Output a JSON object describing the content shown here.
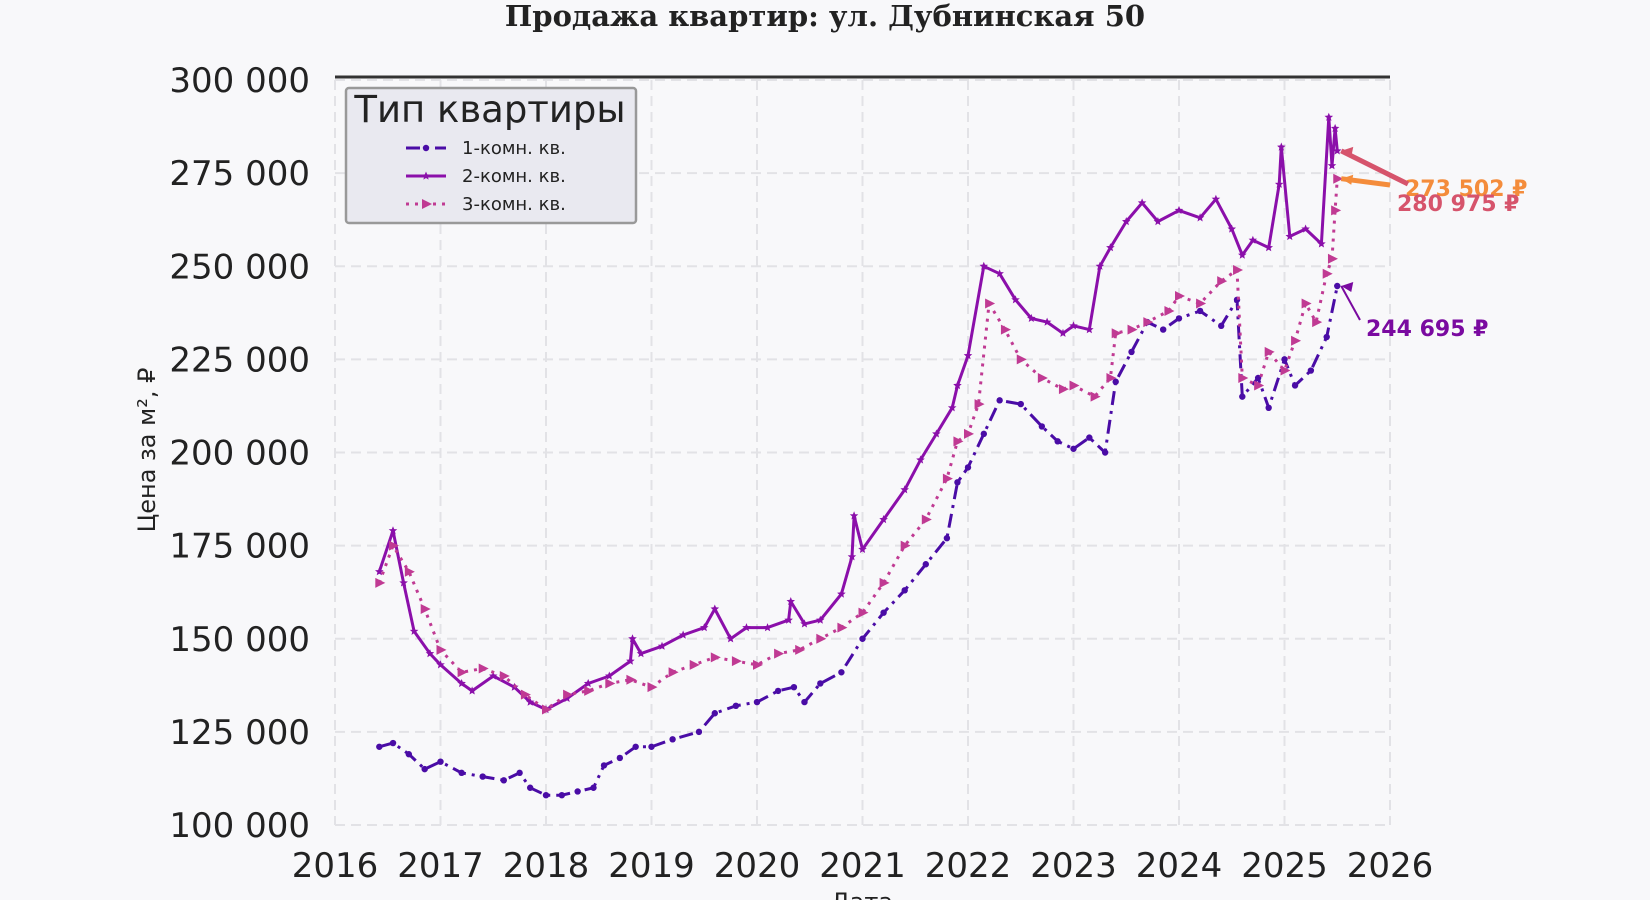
{
  "chart_data": {
    "type": "line",
    "title": "Продажа квартир: ул. Дубнинская 50",
    "xlabel": "Дата",
    "ylabel": "Цена за м², ₽",
    "xlim": [
      2016,
      2026
    ],
    "ylim": [
      100000,
      300000
    ],
    "x_ticks": [
      "2016",
      "2017",
      "2018",
      "2019",
      "2020",
      "2021",
      "2022",
      "2023",
      "2024",
      "2025",
      "2026"
    ],
    "y_ticks": [
      "100 000",
      "125 000",
      "150 000",
      "175 000",
      "200 000",
      "225 000",
      "250 000",
      "275 000",
      "300 000"
    ],
    "grid": true,
    "legend": {
      "title": "Тип квартиры",
      "placement": "top-left",
      "entries": [
        "1-комн. кв.",
        "2-комн. кв.",
        "3-комн. кв."
      ]
    },
    "series": [
      {
        "name": "1-комн. кв.",
        "color": "#4a0ca6",
        "style": "dashdot",
        "marker": "circle",
        "x": [
          2016.42,
          2016.55,
          2016.7,
          2016.85,
          2017.0,
          2017.2,
          2017.4,
          2017.6,
          2017.75,
          2017.85,
          2018.0,
          2018.15,
          2018.3,
          2018.45,
          2018.55,
          2018.7,
          2018.85,
          2019.0,
          2019.2,
          2019.45,
          2019.6,
          2019.8,
          2020.0,
          2020.2,
          2020.35,
          2020.45,
          2020.6,
          2020.8,
          2021.0,
          2021.2,
          2021.4,
          2021.6,
          2021.8,
          2021.9,
          2022.0,
          2022.15,
          2022.3,
          2022.5,
          2022.7,
          2022.85,
          2023.0,
          2023.15,
          2023.3,
          2023.4,
          2023.55,
          2023.7,
          2023.85,
          2024.0,
          2024.2,
          2024.4,
          2024.55,
          2024.6,
          2024.75,
          2024.85,
          2025.0,
          2025.1,
          2025.25,
          2025.4,
          2025.5
        ],
        "values": [
          121000,
          122000,
          119000,
          115000,
          117000,
          114000,
          113000,
          112000,
          114000,
          110000,
          108000,
          108000,
          109000,
          110000,
          116000,
          118000,
          121000,
          121000,
          123000,
          125000,
          130000,
          132000,
          133000,
          136000,
          137000,
          133000,
          138000,
          141000,
          150000,
          157000,
          163000,
          170000,
          177000,
          192000,
          196000,
          205000,
          214000,
          213000,
          207000,
          203000,
          201000,
          204000,
          200000,
          219000,
          227000,
          235000,
          233000,
          236000,
          238000,
          234000,
          241000,
          215000,
          220000,
          212000,
          225000,
          218000,
          222000,
          231000,
          244695
        ]
      },
      {
        "name": "2-комн. кв.",
        "color": "#8b0faa",
        "style": "solid",
        "marker": "star",
        "x": [
          2016.42,
          2016.55,
          2016.65,
          2016.75,
          2016.9,
          2017.0,
          2017.2,
          2017.3,
          2017.5,
          2017.7,
          2017.85,
          2018.0,
          2018.2,
          2018.4,
          2018.6,
          2018.8,
          2018.82,
          2018.9,
          2019.1,
          2019.3,
          2019.5,
          2019.6,
          2019.75,
          2019.9,
          2020.1,
          2020.3,
          2020.32,
          2020.45,
          2020.6,
          2020.8,
          2020.9,
          2020.92,
          2021.0,
          2021.2,
          2021.4,
          2021.55,
          2021.7,
          2021.85,
          2021.9,
          2022.0,
          2022.15,
          2022.3,
          2022.45,
          2022.6,
          2022.75,
          2022.9,
          2023.0,
          2023.15,
          2023.25,
          2023.35,
          2023.5,
          2023.65,
          2023.8,
          2024.0,
          2024.2,
          2024.35,
          2024.5,
          2024.6,
          2024.7,
          2024.85,
          2024.95,
          2024.97,
          2025.05,
          2025.2,
          2025.35,
          2025.42,
          2025.45,
          2025.48,
          2025.5
        ],
        "values": [
          168000,
          179000,
          165000,
          152000,
          146000,
          143000,
          138000,
          136000,
          140000,
          137000,
          133000,
          131000,
          134000,
          138000,
          140000,
          144000,
          150000,
          146000,
          148000,
          151000,
          153000,
          158000,
          150000,
          153000,
          153000,
          155000,
          160000,
          154000,
          155000,
          162000,
          172000,
          183000,
          174000,
          182000,
          190000,
          198000,
          205000,
          212000,
          218000,
          226000,
          250000,
          248000,
          241000,
          236000,
          235000,
          232000,
          234000,
          233000,
          250000,
          255000,
          262000,
          267000,
          262000,
          265000,
          263000,
          268000,
          260000,
          253000,
          257000,
          255000,
          272000,
          282000,
          258000,
          260000,
          256000,
          290000,
          277000,
          287000,
          280975
        ]
      },
      {
        "name": "3-комн. кв.",
        "color": "#c03a93",
        "style": "dotted",
        "marker": "triangle",
        "x": [
          2016.42,
          2016.55,
          2016.7,
          2016.85,
          2017.0,
          2017.2,
          2017.4,
          2017.6,
          2017.8,
          2018.0,
          2018.2,
          2018.4,
          2018.6,
          2018.8,
          2019.0,
          2019.2,
          2019.4,
          2019.6,
          2019.8,
          2020.0,
          2020.2,
          2020.4,
          2020.6,
          2020.8,
          2021.0,
          2021.2,
          2021.4,
          2021.6,
          2021.8,
          2021.9,
          2022.0,
          2022.1,
          2022.2,
          2022.35,
          2022.5,
          2022.7,
          2022.9,
          2023.0,
          2023.2,
          2023.35,
          2023.4,
          2023.55,
          2023.7,
          2023.9,
          2024.0,
          2024.2,
          2024.4,
          2024.55,
          2024.6,
          2024.75,
          2024.85,
          2025.0,
          2025.1,
          2025.2,
          2025.3,
          2025.4,
          2025.45,
          2025.48,
          2025.5
        ],
        "values": [
          165000,
          175000,
          168000,
          158000,
          147000,
          141000,
          142000,
          140000,
          135000,
          131000,
          135000,
          136000,
          138000,
          139000,
          137000,
          141000,
          143000,
          145000,
          144000,
          143000,
          146000,
          147000,
          150000,
          153000,
          157000,
          165000,
          175000,
          182000,
          193000,
          203000,
          205000,
          213000,
          240000,
          233000,
          225000,
          220000,
          217000,
          218000,
          215000,
          220000,
          232000,
          233000,
          235000,
          238000,
          242000,
          240000,
          246000,
          249000,
          220000,
          218000,
          227000,
          222000,
          230000,
          240000,
          235000,
          248000,
          252000,
          265000,
          273502
        ]
      }
    ],
    "annotations": [
      {
        "label": "273 502 ₽",
        "series": "3-комн. кв.",
        "x": 2025.5,
        "value": 273502,
        "color": "#f48c3b"
      },
      {
        "label": "280 975 ₽",
        "series": "2-комн. кв.",
        "x": 2025.5,
        "value": 280975,
        "color": "#d6546c"
      },
      {
        "label": "244 695 ₽",
        "series": "1-комн. кв.",
        "x": 2025.5,
        "value": 244695,
        "color": "#7a0aa0"
      }
    ]
  }
}
